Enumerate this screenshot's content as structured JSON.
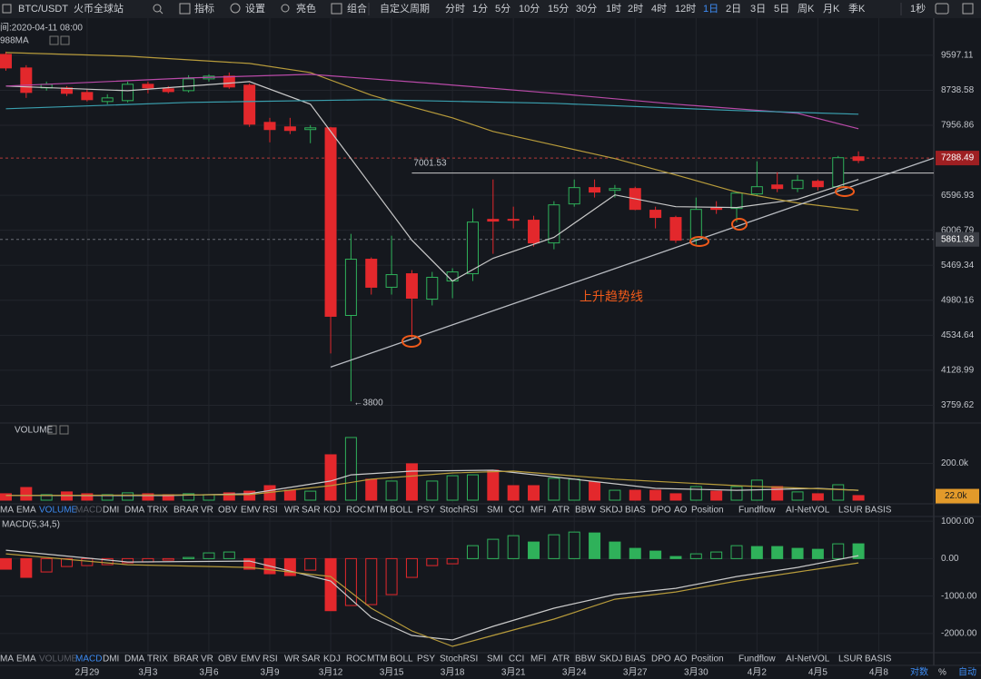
{
  "toolbar": {
    "symbol": "BTC/USDT",
    "exchange": "火币全球站",
    "tools": [
      "指标",
      "设置",
      "亮色",
      "组合"
    ],
    "custom_period": "自定义周期",
    "periods": [
      "分时",
      "1分",
      "5分",
      "10分",
      "15分",
      "30分",
      "1时",
      "2时",
      "4时",
      "12时",
      "1日",
      "2日",
      "3日",
      "5日",
      "周K",
      "月K",
      "季K"
    ],
    "active_period": 10,
    "speed": "1秒"
  },
  "info": {
    "time": "间:2020-04-11 08:00",
    "ma_label": "988MA"
  },
  "price_chart": {
    "type": "candlestick",
    "scale": "log",
    "ylim": [
      3594,
      10600
    ],
    "xlim": [
      -0.29,
      45.71
    ],
    "yticks": [
      9597.11,
      8738.58,
      7956.86,
      6596.93,
      6006.79,
      5469.34,
      4980.16,
      4534.64,
      4128.99,
      3759.62
    ],
    "xticks": [
      {
        "value": 4,
        "label": "2月29"
      },
      {
        "value": 7,
        "label": "3月3"
      },
      {
        "value": 10,
        "label": "3月6"
      },
      {
        "value": 13,
        "label": "3月9"
      },
      {
        "value": 16,
        "label": "3月12"
      },
      {
        "value": 19,
        "label": "3月15"
      },
      {
        "value": 22,
        "label": "3月18"
      },
      {
        "value": 25,
        "label": "3月21"
      },
      {
        "value": 28,
        "label": "3月24"
      },
      {
        "value": 31,
        "label": "3月27"
      },
      {
        "value": 34,
        "label": "3月30"
      },
      {
        "value": 37,
        "label": "4月2"
      },
      {
        "value": 40,
        "label": "4月5"
      },
      {
        "value": 43,
        "label": "4月8"
      }
    ],
    "up_color": "#2fb15a",
    "down_color": "#e3282c",
    "candles": [
      [
        9620,
        9691,
        9209,
        9277
      ],
      [
        9277,
        9345,
        8562,
        8688
      ],
      [
        8794,
        8944,
        8730,
        8880
      ],
      [
        8794,
        8837,
        8605,
        8667
      ],
      [
        8688,
        8773,
        8480,
        8521
      ],
      [
        8480,
        8646,
        8418,
        8562
      ],
      [
        8500,
        8944,
        8459,
        8880
      ],
      [
        8880,
        8944,
        8667,
        8794
      ],
      [
        8773,
        8837,
        8667,
        8708
      ],
      [
        8730,
        9098,
        8688,
        9010
      ],
      [
        9010,
        9120,
        8944,
        9076
      ],
      [
        9076,
        9164,
        8773,
        8816
      ],
      [
        8858,
        8901,
        7923,
        7980
      ],
      [
        8019,
        8117,
        7602,
        7866
      ],
      [
        7923,
        8117,
        7771,
        7847
      ],
      [
        7866,
        7961,
        7584,
        7903
      ],
      [
        7903,
        7923,
        4319,
        4771
      ],
      [
        4782,
        5950,
        3800,
        5559
      ],
      [
        5559,
        5586,
        5057,
        5157
      ],
      [
        5157,
        5920,
        5057,
        5334
      ],
      [
        5347,
        5399,
        4479,
        5008
      ],
      [
        4995,
        5373,
        4912,
        5296
      ],
      [
        5244,
        5426,
        5008,
        5373
      ],
      [
        5347,
        6368,
        5244,
        6140
      ],
      [
        6185,
        6882,
        5640,
        6156
      ],
      [
        6185,
        6399,
        6037,
        6171
      ],
      [
        6171,
        6245,
        5751,
        5807
      ],
      [
        5807,
        6493,
        5709,
        6430
      ],
      [
        6446,
        6882,
        6399,
        6734
      ],
      [
        6734,
        6882,
        6557,
        6653
      ],
      [
        6685,
        6782,
        6557,
        6717
      ],
      [
        6717,
        6750,
        6338,
        6352
      ],
      [
        6338,
        6399,
        6037,
        6216
      ],
      [
        6216,
        6245,
        5807,
        5849
      ],
      [
        5863,
        6557,
        5779,
        6352
      ],
      [
        6384,
        6493,
        6276,
        6352
      ],
      [
        6368,
        6636,
        6140,
        6636
      ],
      [
        6621,
        7225,
        6588,
        6750
      ],
      [
        6782,
        7017,
        6653,
        6717
      ],
      [
        6717,
        6966,
        6653,
        6866
      ],
      [
        6849,
        6882,
        6685,
        6750
      ],
      [
        6750,
        7330,
        6685,
        7295
      ],
      [
        7313,
        7420,
        7190,
        7242
      ]
    ],
    "ma_series": [
      {
        "color": "#c9c9c9",
        "x": [
          0,
          6,
          12,
          15,
          18,
          20,
          22,
          24,
          27,
          30,
          33,
          36,
          39,
          42
        ],
        "values": [
          8837,
          8730,
          8944,
          8418,
          6766,
          5849,
          5244,
          5573,
          5893,
          6604,
          6399,
          6384,
          6525,
          6882
        ]
      },
      {
        "color": "#b79b3b",
        "x": [
          0,
          6,
          12,
          15,
          18,
          20,
          22,
          24,
          27,
          30,
          33,
          36,
          39,
          42
        ],
        "values": [
          9667,
          9574,
          9390,
          9164,
          8625,
          8357,
          8117,
          7826,
          7547,
          7278,
          6966,
          6653,
          6462,
          6338
        ]
      },
      {
        "color": "#b94aa8",
        "x": [
          0,
          9,
          15,
          21,
          27,
          33,
          39,
          42
        ],
        "values": [
          8837,
          9032,
          9120,
          8901,
          8667,
          8418,
          8217,
          7884
        ]
      },
      {
        "color": "#3a9fae",
        "x": [
          0,
          9,
          18,
          27,
          36,
          42
        ],
        "values": [
          8317,
          8459,
          8521,
          8439,
          8277,
          8196
        ]
      }
    ],
    "last_price": 7288.49,
    "marked_price": 5861.93,
    "level": {
      "value": 7001.53,
      "from_x": 20
    },
    "low_annotation": {
      "value": 3800,
      "label": "←3800"
    },
    "trendline": {
      "color": "#b9bcc2",
      "x": [
        16,
        45.71
      ],
      "values": [
        4164,
        7288
      ]
    },
    "trend_label": "上升趋势线"
  },
  "volume_chart": {
    "type": "bar",
    "title": "VOLUME",
    "ylim": [
      0,
      400000
    ],
    "yticks": [
      {
        "value": 200000,
        "label": "200.0k"
      }
    ],
    "current": {
      "value": 22000,
      "label": "22.0k"
    },
    "values": [
      35000,
      69000,
      30000,
      45000,
      35000,
      30000,
      40000,
      35000,
      30000,
      35000,
      30000,
      40000,
      49000,
      79000,
      54000,
      49000,
      247000,
      341000,
      114000,
      104000,
      198000,
      104000,
      133000,
      138000,
      163000,
      79000,
      79000,
      119000,
      114000,
      99000,
      54000,
      54000,
      54000,
      35000,
      74000,
      49000,
      74000,
      109000,
      74000,
      45000,
      35000,
      84000,
      25000
    ],
    "ma_series": [
      {
        "color": "#c9c9c9",
        "x": [
          0,
          8,
          12,
          16,
          17,
          20,
          24,
          28,
          32,
          36,
          40,
          42
        ],
        "values": [
          25000,
          25000,
          35000,
          104000,
          138000,
          158000,
          163000,
          114000,
          64000,
          54000,
          64000,
          54000
        ]
      },
      {
        "color": "#b79b3b",
        "x": [
          0,
          12,
          16,
          18,
          22,
          25,
          30,
          36,
          42
        ],
        "values": [
          25000,
          30000,
          79000,
          114000,
          148000,
          158000,
          114000,
          79000,
          54000
        ]
      }
    ]
  },
  "macd_chart": {
    "type": "histogram",
    "title": "MACD(5,34,5)",
    "ylim": [
      -2400,
      1100
    ],
    "yticks": [
      {
        "value": 1000,
        "label": "1000.00"
      },
      {
        "value": 0,
        "label": "0.00"
      },
      {
        "value": -1000,
        "label": "-1000.00"
      },
      {
        "value": -2000,
        "label": "-2000.00"
      }
    ],
    "values": [
      -283,
      -501,
      -356,
      -211,
      -186,
      -162,
      -114,
      -90,
      -41,
      31,
      153,
      177,
      -283,
      -404,
      -453,
      -308,
      -1390,
      -1252,
      -1228,
      -961,
      -501,
      -186,
      -138,
      346,
      516,
      613,
      443,
      637,
      709,
      685,
      443,
      274,
      201,
      56,
      128,
      177,
      346,
      322,
      322,
      274,
      249,
      395,
      395
    ],
    "lines": [
      {
        "color": "#c9c9c9",
        "x": [
          0,
          6,
          12,
          16,
          18,
          20,
          22,
          24,
          27,
          30,
          33,
          36,
          39,
          42
        ],
        "values": [
          225,
          -90,
          -65,
          -598,
          -1567,
          -2051,
          -2172,
          -1809,
          -1325,
          -961,
          -792,
          -477,
          -235,
          80
        ]
      },
      {
        "color": "#b79b3b",
        "x": [
          0,
          6,
          12,
          16,
          18,
          20,
          22,
          24,
          27,
          30,
          33,
          36,
          39,
          42
        ],
        "values": [
          128,
          -162,
          -235,
          -477,
          -1325,
          -1930,
          -2341,
          -2051,
          -1615,
          -1083,
          -889,
          -598,
          -356,
          -114
        ]
      }
    ]
  },
  "indicator_tabs": [
    "MA",
    "EMA",
    "VOLUME",
    "MACD",
    "DMI",
    "DMA",
    "TRIX",
    "BRAR",
    "VR",
    "OBV",
    "EMV",
    "RSI",
    "WR",
    "SAR",
    "KDJ",
    "ROC",
    "MTM",
    "BOLL",
    "PSY",
    "StochRSI",
    "SMI",
    "CCI",
    "MFI",
    "ATR",
    "BBW",
    "SKDJ",
    "BIAS",
    "DPO",
    "AO",
    "Position",
    "Fundflow",
    "AI-NetVOL",
    "LSUR",
    "BASIS"
  ],
  "volume_tab": 2,
  "macd_tab": 3,
  "axis_options": [
    "对数",
    "%",
    "自动"
  ],
  "axis_active": [
    0,
    2
  ]
}
